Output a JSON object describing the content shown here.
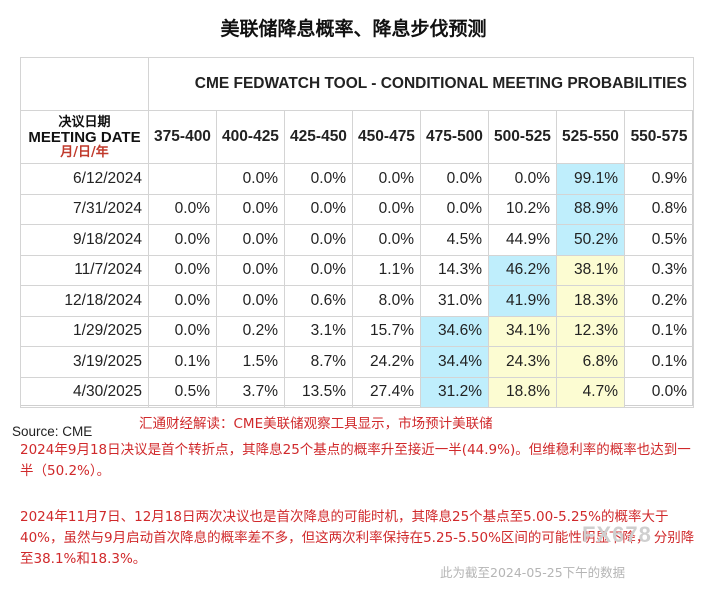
{
  "page_title": "美联储降息概率、降息步伐预测",
  "chart_data": {
    "type": "table",
    "title": "CME FEDWATCH TOOL - CONDITIONAL MEETING PROBABILITIES",
    "row_header": {
      "cn": "决议日期",
      "en": "MEETING DATE",
      "format": "月/日/年"
    },
    "columns": [
      "375-400",
      "400-425",
      "425-450",
      "450-475",
      "475-500",
      "500-525",
      "525-550",
      "550-575"
    ],
    "rows": [
      {
        "date": "6/12/2024",
        "values": [
          "",
          "0.0%",
          "0.0%",
          "0.0%",
          "0.0%",
          "0.0%",
          "99.1%",
          "0.9%"
        ],
        "highlight": [
          "",
          "",
          "",
          "",
          "",
          "",
          "blue",
          ""
        ]
      },
      {
        "date": "7/31/2024",
        "values": [
          "0.0%",
          "0.0%",
          "0.0%",
          "0.0%",
          "0.0%",
          "10.2%",
          "88.9%",
          "0.8%"
        ],
        "highlight": [
          "",
          "",
          "",
          "",
          "",
          "",
          "blue",
          ""
        ]
      },
      {
        "date": "9/18/2024",
        "values": [
          "0.0%",
          "0.0%",
          "0.0%",
          "0.0%",
          "4.5%",
          "44.9%",
          "50.2%",
          "0.5%"
        ],
        "highlight": [
          "",
          "",
          "",
          "",
          "",
          "",
          "blue",
          ""
        ]
      },
      {
        "date": "11/7/2024",
        "values": [
          "0.0%",
          "0.0%",
          "0.0%",
          "1.1%",
          "14.3%",
          "46.2%",
          "38.1%",
          "0.3%"
        ],
        "highlight": [
          "",
          "",
          "",
          "",
          "",
          "blue",
          "yellow",
          ""
        ]
      },
      {
        "date": "12/18/2024",
        "values": [
          "0.0%",
          "0.0%",
          "0.6%",
          "8.0%",
          "31.0%",
          "41.9%",
          "18.3%",
          "0.2%"
        ],
        "highlight": [
          "",
          "",
          "",
          "",
          "",
          "blue",
          "yellow",
          ""
        ]
      },
      {
        "date": "1/29/2025",
        "values": [
          "0.0%",
          "0.2%",
          "3.1%",
          "15.7%",
          "34.6%",
          "34.1%",
          "12.3%",
          "0.1%"
        ],
        "highlight": [
          "",
          "",
          "",
          "",
          "blue",
          "yellow",
          "yellow",
          ""
        ]
      },
      {
        "date": "3/19/2025",
        "values": [
          "0.1%",
          "1.5%",
          "8.7%",
          "24.2%",
          "34.4%",
          "24.3%",
          "6.8%",
          "0.1%"
        ],
        "highlight": [
          "",
          "",
          "",
          "",
          "blue",
          "yellow",
          "yellow",
          ""
        ]
      },
      {
        "date": "4/30/2025",
        "values": [
          "0.5%",
          "3.7%",
          "13.5%",
          "27.4%",
          "31.2%",
          "18.8%",
          "4.7%",
          "0.0%"
        ],
        "highlight": [
          "",
          "",
          "",
          "",
          "blue",
          "yellow",
          "yellow",
          ""
        ]
      }
    ],
    "colors": {
      "blue": "#bfeefc",
      "yellow": "#fcfcd2"
    }
  },
  "source": "Source: CME",
  "notes": {
    "line1": "汇通财经解读：CME美联储观察工具显示，市场预计美联储",
    "para1": "2024年9月18日决议是首个转折点，其降息25个基点的概率升至接近一半(44.9%)。但维稳利率的概率也达到一半（50.2%）。",
    "para2": "2024年11月7日、12月18日两次决议也是首次降息的可能时机，其降息25个基点至5.00-5.25%的概率大于40%，虽然与9月启动首次降息的概率差不多，但这两次利率保持在5.25-5.50%区间的可能性明显下降，  分别降至38.1%和18.3%。"
  },
  "watermark": {
    "logo": "FX678",
    "date": "此为截至2024-05-25下午的数据"
  }
}
